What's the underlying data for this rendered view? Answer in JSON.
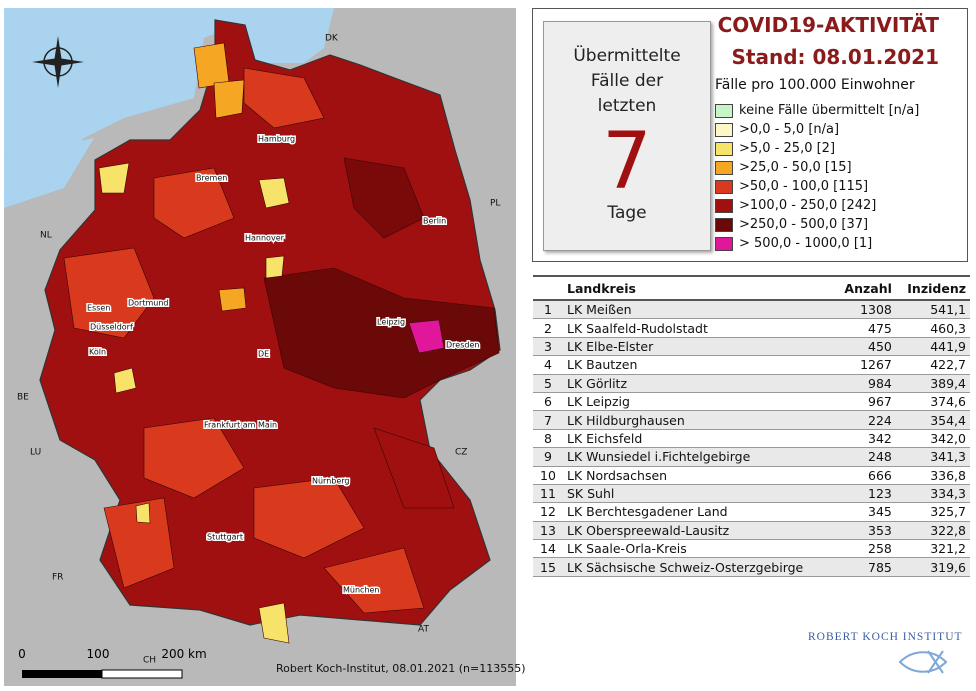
{
  "map": {
    "labels": [
      "DK",
      "PL",
      "NL",
      "BE",
      "LU",
      "FR",
      "CZ",
      "AT",
      "CH",
      "Hamburg",
      "Bremen",
      "Berlin",
      "Hannover",
      "Essen",
      "Dortmund",
      "Düsseldorf",
      "Köln",
      "Leipzig",
      "Dresden",
      "DE",
      "Frankfurt am Main",
      "Nürnberg",
      "Stuttgart",
      "München"
    ],
    "scale": [
      "0",
      "100",
      "200 km"
    ],
    "credit": "Robert Koch-Institut, 08.01.2021 (n=113555)"
  },
  "legend": {
    "box_lines": [
      "Übermittelte",
      "Fälle der",
      "letzten"
    ],
    "days": 7,
    "box_unit": "Tage",
    "title": "COVID19-AKTIVITÄT",
    "date": "Stand: 08.01.2021",
    "subtitle": "Fälle pro 100.000 Einwohner",
    "items": [
      {
        "label": "keine Fälle übermittelt [n/a]",
        "color": "#c8f5c8"
      },
      {
        "label": ">0,0 - 5,0 [n/a]",
        "color": "#fdf7c8"
      },
      {
        "label": ">5,0 - 25,0 [2]",
        "color": "#f7e36a"
      },
      {
        "label": ">25,0 - 50,0 [15]",
        "color": "#f5a623"
      },
      {
        "label": ">50,0 - 100,0 [115]",
        "color": "#d93a1e"
      },
      {
        "label": ">100,0 - 250,0 [242]",
        "color": "#a11010"
      },
      {
        "label": ">250,0 - 500,0 [37]",
        "color": "#6b0808"
      },
      {
        "label": "> 500,0 - 1000,0 [1]",
        "color": "#e0179a"
      }
    ]
  },
  "table": {
    "columns": [
      "Landkreis",
      "Anzahl",
      "Inzidenz"
    ],
    "rows": [
      [
        "1",
        "LK Meißen",
        "1308",
        "541,1"
      ],
      [
        "2",
        "LK Saalfeld-Rudolstadt",
        "475",
        "460,3"
      ],
      [
        "3",
        "LK Elbe-Elster",
        "450",
        "441,9"
      ],
      [
        "4",
        "LK Bautzen",
        "1267",
        "422,7"
      ],
      [
        "5",
        "LK Görlitz",
        "984",
        "389,4"
      ],
      [
        "6",
        "LK Leipzig",
        "967",
        "374,6"
      ],
      [
        "7",
        "LK Hildburghausen",
        "224",
        "354,4"
      ],
      [
        "8",
        "LK Eichsfeld",
        "342",
        "342,0"
      ],
      [
        "9",
        "LK Wunsiedel i.Fichtelgebirge",
        "248",
        "341,3"
      ],
      [
        "10",
        "LK Nordsachsen",
        "666",
        "336,8"
      ],
      [
        "11",
        "SK Suhl",
        "123",
        "334,3"
      ],
      [
        "12",
        "LK Berchtesgadener Land",
        "345",
        "325,7"
      ],
      [
        "13",
        "LK Oberspreewald-Lausitz",
        "353",
        "322,8"
      ],
      [
        "14",
        "LK Saale-Orla-Kreis",
        "258",
        "321,2"
      ],
      [
        "15",
        "LK Sächsische Schweiz-Osterzgebirge",
        "785",
        "319,6"
      ]
    ]
  },
  "logo": "ROBERT KOCH INSTITUT"
}
